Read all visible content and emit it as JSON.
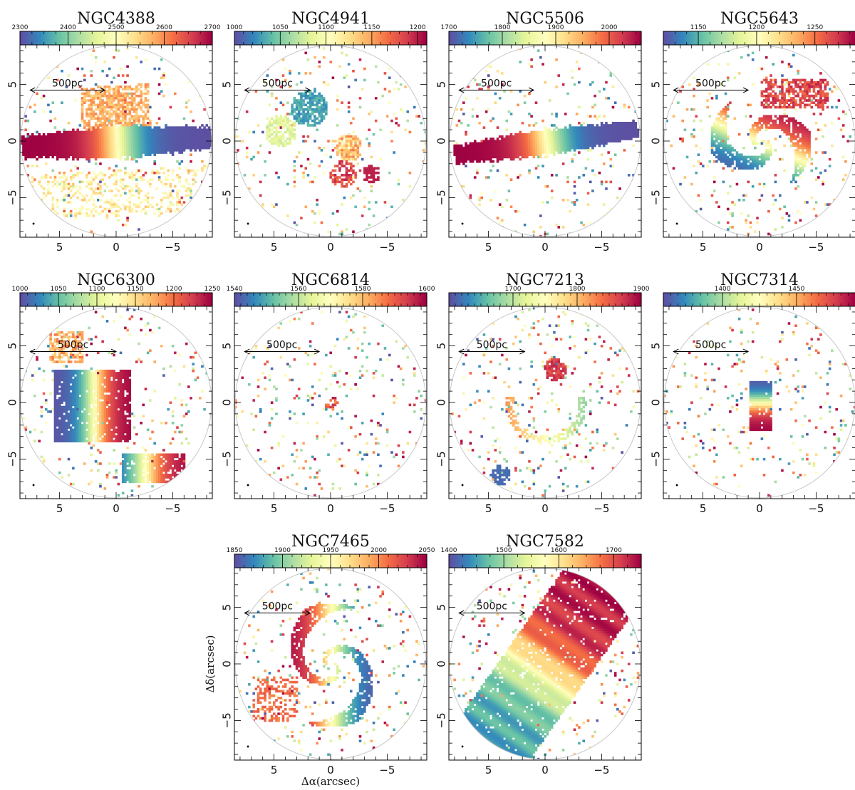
{
  "figure": {
    "xlabel": "Δα(arcsec)",
    "ylabel": "Δδ(arcsec)",
    "axis_tick_labels": [
      "5",
      "0",
      "−5"
    ],
    "scale_bar_label": "500pc"
  },
  "chart_data": [
    {
      "type": "heatmap",
      "title": "NGC4388",
      "colorbar": {
        "min": 2300,
        "max": 2700,
        "ticks": [
          2300,
          2400,
          2500,
          2600,
          2700
        ]
      },
      "xlim": [
        8.5,
        -8.5
      ],
      "ylim": [
        -8.5,
        8.5
      ],
      "pattern": "disk",
      "pa": -3,
      "extent": [
        8.5,
        1.3
      ],
      "reverse": false
    },
    {
      "type": "heatmap",
      "title": "NGC4941",
      "colorbar": {
        "min": 1000,
        "max": 1210,
        "ticks": [
          1000,
          1050,
          1100,
          1150,
          1200
        ]
      },
      "xlim": [
        8.5,
        -8.5
      ],
      "ylim": [
        -8.5,
        8.5
      ],
      "pattern": "blobs",
      "reverse": false
    },
    {
      "type": "heatmap",
      "title": "NGC5506",
      "colorbar": {
        "min": 1700,
        "max": 2060,
        "ticks": [
          1700,
          1800,
          1900,
          2000
        ]
      },
      "xlim": [
        8.5,
        -8.5
      ],
      "ylim": [
        -8.5,
        8.5
      ],
      "pattern": "disk",
      "pa": -8,
      "extent": [
        8.2,
        1.0
      ],
      "reverse": true
    },
    {
      "type": "heatmap",
      "title": "NGC5643",
      "colorbar": {
        "min": 1120,
        "max": 1285,
        "ticks": [
          1150,
          1200,
          1250
        ]
      },
      "xlim": [
        8.5,
        -8.5
      ],
      "ylim": [
        -8.5,
        8.5
      ],
      "pattern": "spiral",
      "reverse": true
    },
    {
      "type": "heatmap",
      "title": "NGC6300",
      "colorbar": {
        "min": 1000,
        "max": 1250,
        "ticks": [
          1000,
          1050,
          1100,
          1150,
          1200,
          1250
        ]
      },
      "xlim": [
        8.5,
        -8.5
      ],
      "ylim": [
        -8.5,
        8.5
      ],
      "pattern": "rotator",
      "reverse": false
    },
    {
      "type": "heatmap",
      "title": "NGC6814",
      "colorbar": {
        "min": 1540,
        "max": 1600,
        "ticks": [
          1540,
          1560,
          1580,
          1600
        ]
      },
      "xlim": [
        8.5,
        -8.5
      ],
      "ylim": [
        -8.5,
        8.5
      ],
      "pattern": "point",
      "reverse": false
    },
    {
      "type": "heatmap",
      "title": "NGC7213",
      "colorbar": {
        "min": 1600,
        "max": 1900,
        "ticks": [
          1700,
          1800,
          1900
        ]
      },
      "xlim": [
        8.5,
        -8.5
      ],
      "ylim": [
        -8.5,
        8.5
      ],
      "pattern": "ring",
      "reverse": false
    },
    {
      "type": "heatmap",
      "title": "NGC7314",
      "colorbar": {
        "min": 1360,
        "max": 1490,
        "ticks": [
          1400,
          1450
        ]
      },
      "xlim": [
        8.5,
        -8.5
      ],
      "ylim": [
        -8.5,
        8.5
      ],
      "pattern": "compact",
      "reverse": false
    },
    {
      "type": "heatmap",
      "title": "NGC7465",
      "colorbar": {
        "min": 1850,
        "max": 2050,
        "ticks": [
          1850,
          1900,
          1950,
          2000,
          2050
        ]
      },
      "xlim": [
        8.5,
        -8.5
      ],
      "ylim": [
        -8.5,
        8.5
      ],
      "pattern": "spiral2",
      "reverse": false
    },
    {
      "type": "heatmap",
      "title": "NGC7582",
      "colorbar": {
        "min": 1400,
        "max": 1750,
        "ticks": [
          1400,
          1500,
          1600,
          1700
        ]
      },
      "xlim": [
        8.5,
        -8.5
      ],
      "ylim": [
        -8.5,
        8.5
      ],
      "pattern": "wide",
      "reverse": false
    }
  ]
}
